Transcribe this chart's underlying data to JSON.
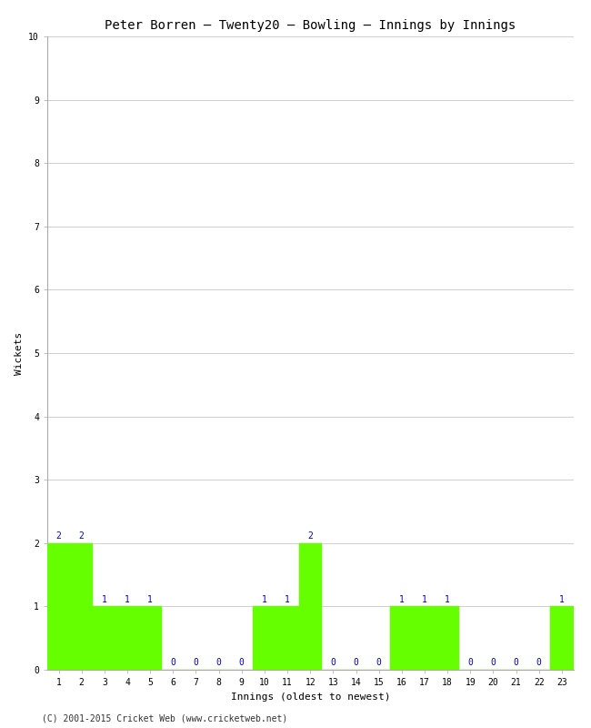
{
  "title": "Peter Borren – Twenty20 – Bowling – Innings by Innings",
  "xlabel": "Innings (oldest to newest)",
  "ylabel": "Wickets",
  "footnote": "(C) 2001-2015 Cricket Web (www.cricketweb.net)",
  "ylim": [
    0,
    10
  ],
  "yticks": [
    0,
    1,
    2,
    3,
    4,
    5,
    6,
    7,
    8,
    9,
    10
  ],
  "innings": [
    1,
    2,
    3,
    4,
    5,
    6,
    7,
    8,
    9,
    10,
    11,
    12,
    13,
    14,
    15,
    16,
    17,
    18,
    19,
    20,
    21,
    22,
    23
  ],
  "wickets": [
    2,
    2,
    1,
    1,
    1,
    0,
    0,
    0,
    0,
    1,
    1,
    2,
    0,
    0,
    0,
    1,
    1,
    1,
    0,
    0,
    0,
    0,
    1
  ],
  "bar_color": "#66ff00",
  "bar_edge_color": "#66ff00",
  "label_color": "#0000cc",
  "background_color": "#ffffff",
  "grid_color": "#c8c8c8",
  "title_fontsize": 10,
  "axis_label_fontsize": 8,
  "tick_fontsize": 7,
  "value_label_fontsize": 7,
  "footnote_fontsize": 7
}
